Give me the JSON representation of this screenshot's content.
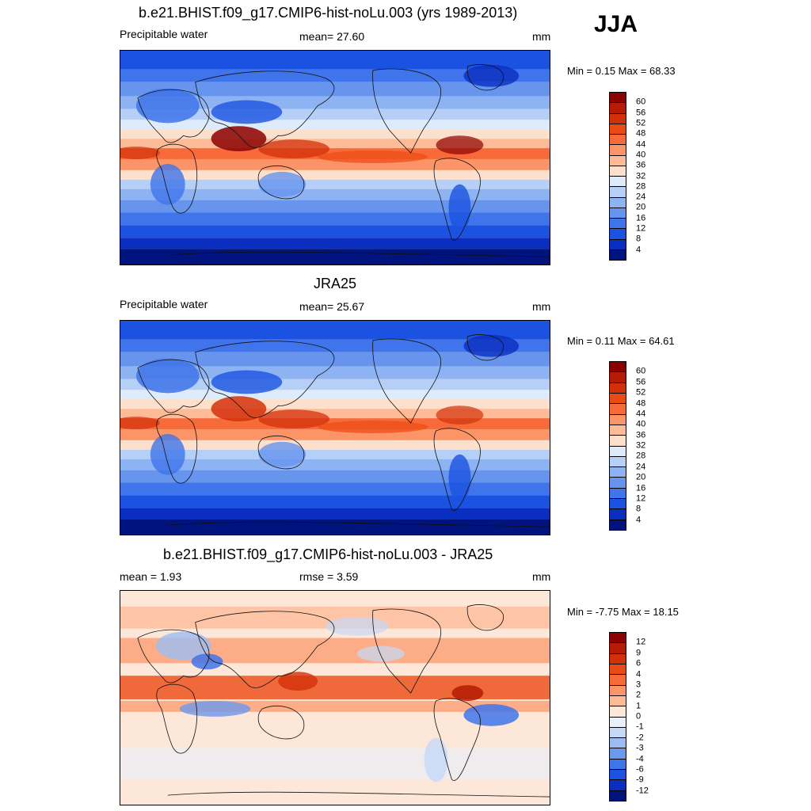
{
  "season": "JJA",
  "panels": [
    {
      "title": "b.e21.BHIST.f09_g17.CMIP6-hist-noLu.003 (yrs 1989-2013)",
      "left_label": "Precipitable water",
      "center_label": "mean=  27.60",
      "units": "mm",
      "minmax": "Min =   0.15 Max =  68.33",
      "kind": "model",
      "colorbar": {
        "labels": [
          "60",
          "56",
          "52",
          "48",
          "44",
          "40",
          "36",
          "32",
          "28",
          "24",
          "20",
          "16",
          "12",
          "8",
          "4"
        ],
        "colors": [
          "#8b0000",
          "#b51b05",
          "#d3300a",
          "#ec4a14",
          "#f76b3a",
          "#fb9466",
          "#fdbb98",
          "#fde0cc",
          "#ddebfb",
          "#b6cff7",
          "#8eb3f2",
          "#6795ee",
          "#3f74ea",
          "#1b52e1",
          "#0a2ec0",
          "#00137e"
        ]
      }
    },
    {
      "title": "JRA25",
      "left_label": "Precipitable water",
      "center_label": "mean=  25.67",
      "units": "mm",
      "minmax": "Min =   0.11 Max =  64.61",
      "kind": "obs",
      "colorbar": {
        "labels": [
          "60",
          "56",
          "52",
          "48",
          "44",
          "40",
          "36",
          "32",
          "28",
          "24",
          "20",
          "16",
          "12",
          "8",
          "4"
        ],
        "colors": [
          "#8b0000",
          "#b51b05",
          "#d3300a",
          "#ec4a14",
          "#f76b3a",
          "#fb9466",
          "#fdbb98",
          "#fde0cc",
          "#ddebfb",
          "#b6cff7",
          "#8eb3f2",
          "#6795ee",
          "#3f74ea",
          "#1b52e1",
          "#0a2ec0",
          "#00137e"
        ]
      }
    },
    {
      "title": "b.e21.BHIST.f09_g17.CMIP6-hist-noLu.003 - JRA25",
      "left_label": "mean =    1.93",
      "center_label": "rmse =    3.59",
      "units": "mm",
      "minmax": "Min =  -7.75 Max =  18.15",
      "kind": "diff",
      "colorbar": {
        "labels": [
          "12",
          "9",
          "6",
          "4",
          "3",
          "2",
          "1",
          "0",
          "-1",
          "-2",
          "-3",
          "-4",
          "-6",
          "-9",
          "-12"
        ],
        "colors": [
          "#8b0000",
          "#b51b05",
          "#d3300a",
          "#ec4a14",
          "#f76b3a",
          "#fb9466",
          "#fdbb98",
          "#fde7d8",
          "#e8f0fb",
          "#c6d9f7",
          "#9cbdf2",
          "#6d99ec",
          "#3f74ea",
          "#1b52e1",
          "#0a2ec0",
          "#00137e"
        ]
      }
    }
  ]
}
